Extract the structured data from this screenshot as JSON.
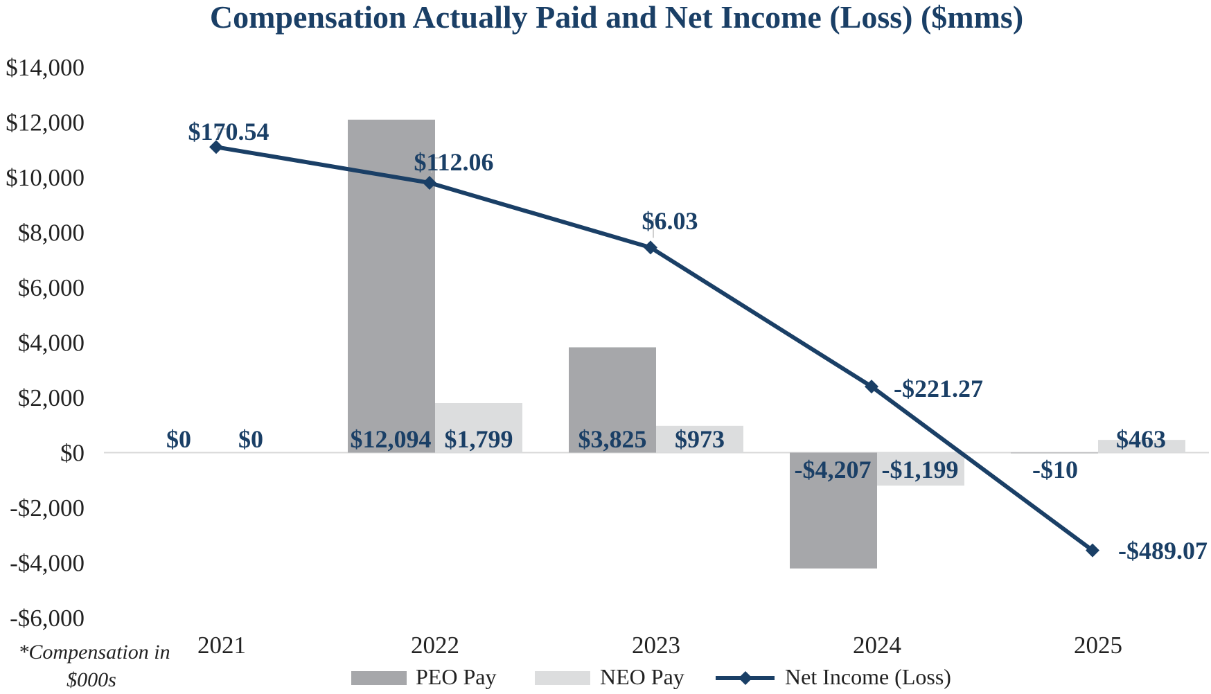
{
  "chart_data": {
    "type": "bar",
    "title": "Compensation Actually Paid and Net Income (Loss) ($mms)",
    "categories": [
      "2021",
      "2022",
      "2023",
      "2024",
      "2025"
    ],
    "ylim": [
      -6000,
      14000
    ],
    "yticks": [
      14000,
      12000,
      10000,
      8000,
      6000,
      4000,
      2000,
      0,
      -2000,
      -4000,
      -6000
    ],
    "ytick_labels": [
      "$14,000",
      "$12,000",
      "$10,000",
      "$8,000",
      "$6,000",
      "$4,000",
      "$2,000",
      "$0",
      "-$2,000",
      "-$4,000",
      "-$6,000"
    ],
    "series": [
      {
        "name": "PEO Pay",
        "kind": "bar",
        "color": "#a6a7aa",
        "values": [
          0,
          12094,
          3825,
          -4207,
          -10
        ],
        "labels": [
          "$0",
          "$12,094",
          "$3,825",
          "-$4,207",
          "-$10"
        ]
      },
      {
        "name": "NEO Pay",
        "kind": "bar",
        "color": "#dcddde",
        "values": [
          0,
          1799,
          973,
          -1199,
          463
        ],
        "labels": [
          "$0",
          "$1,799",
          "$973",
          "-$1,199",
          "$463"
        ]
      },
      {
        "name": "Net Income (Loss)",
        "kind": "line",
        "color": "#1a3f66",
        "plot_values": [
          11100,
          9800,
          7450,
          2400,
          -3550
        ],
        "values": [
          170.54,
          112.06,
          6.03,
          -221.27,
          -489.07
        ],
        "labels": [
          "$170.54",
          "$112.06",
          "$6.03",
          "-$221.27",
          "-$489.07"
        ]
      }
    ],
    "note": [
      "*Compensation in",
      "$000s"
    ],
    "legend_position": "bottom-center"
  }
}
